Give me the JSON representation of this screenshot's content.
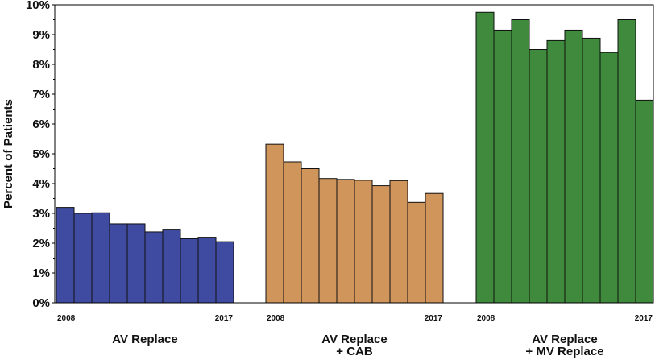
{
  "chart_data": {
    "type": "bar",
    "title": "",
    "xlabel": "",
    "ylabel": "Percent of Patients",
    "ylim": [
      0,
      10
    ],
    "y_ticks": [
      "0%",
      "1%",
      "2%",
      "3%",
      "4%",
      "5%",
      "6%",
      "7%",
      "8%",
      "9%",
      "10%"
    ],
    "y_tick_values": [
      0,
      1,
      2,
      3,
      4,
      5,
      6,
      7,
      8,
      9,
      10
    ],
    "grid": false,
    "legend": "none",
    "groups": [
      {
        "label_lines": [
          "AV Replace"
        ],
        "year_start": "2008",
        "year_end": "2017",
        "color": "#3f4ba0",
        "values": [
          3.2,
          3.0,
          3.02,
          2.65,
          2.65,
          2.38,
          2.47,
          2.15,
          2.2,
          2.05
        ]
      },
      {
        "label_lines": [
          "AV Replace",
          "+ CAB"
        ],
        "year_start": "2008",
        "year_end": "2017",
        "color": "#d0955a",
        "values": [
          5.32,
          4.73,
          4.5,
          4.17,
          4.14,
          4.11,
          3.93,
          4.1,
          3.37,
          3.67
        ]
      },
      {
        "label_lines": [
          "AV Replace",
          "+ MV Replace"
        ],
        "year_start": "2008",
        "year_end": "2017",
        "color": "#3f8a3c",
        "values": [
          9.75,
          9.15,
          9.5,
          8.5,
          8.8,
          9.15,
          8.88,
          8.4,
          9.5,
          6.8
        ]
      }
    ]
  }
}
